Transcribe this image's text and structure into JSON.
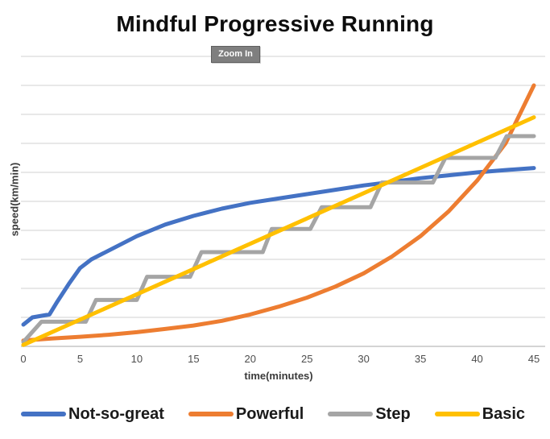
{
  "title": "Mindful Progressive Running",
  "tooltip": {
    "label": "Zoom In"
  },
  "chart_data": {
    "type": "line",
    "title": "Mindful Progressive Running",
    "xlabel": "time(minutes)",
    "ylabel": "speed(km/min)",
    "xlim": [
      0,
      45
    ],
    "ylim": [
      0,
      10
    ],
    "x_ticks": [
      0,
      5,
      10,
      15,
      20,
      25,
      30,
      35,
      40,
      45
    ],
    "y_grid_step": 1,
    "y_tick_labels_visible": false,
    "grid": "horizontal",
    "grid_color": "#d9d9d9",
    "axis_color": "#c6c6c6",
    "tick_label_color": "#4d4d4d",
    "legend_position": "bottom",
    "series": [
      {
        "name": "Not-so-great",
        "color": "#4472C4",
        "points": [
          [
            0,
            0.75
          ],
          [
            0.8,
            1.0
          ],
          [
            2.3,
            1.1
          ],
          [
            3,
            1.55
          ],
          [
            4,
            2.15
          ],
          [
            5,
            2.7
          ],
          [
            6,
            3.0
          ],
          [
            7.5,
            3.3
          ],
          [
            10,
            3.8
          ],
          [
            12.5,
            4.2
          ],
          [
            15,
            4.5
          ],
          [
            17.5,
            4.75
          ],
          [
            20,
            4.95
          ],
          [
            22.5,
            5.1
          ],
          [
            25,
            5.25
          ],
          [
            27.5,
            5.4
          ],
          [
            30,
            5.55
          ],
          [
            32.5,
            5.67
          ],
          [
            35,
            5.8
          ],
          [
            37.5,
            5.9
          ],
          [
            40,
            6.0
          ],
          [
            42.5,
            6.08
          ],
          [
            45,
            6.15
          ]
        ]
      },
      {
        "name": "Powerful",
        "color": "#ED7D31",
        "points": [
          [
            0,
            0.2
          ],
          [
            2.5,
            0.27
          ],
          [
            5,
            0.33
          ],
          [
            7.5,
            0.4
          ],
          [
            10,
            0.49
          ],
          [
            12.5,
            0.6
          ],
          [
            15,
            0.72
          ],
          [
            17.5,
            0.88
          ],
          [
            20,
            1.1
          ],
          [
            22.5,
            1.37
          ],
          [
            25,
            1.68
          ],
          [
            27.5,
            2.06
          ],
          [
            30,
            2.52
          ],
          [
            32.5,
            3.1
          ],
          [
            35,
            3.8
          ],
          [
            37.5,
            4.66
          ],
          [
            40,
            5.72
          ],
          [
            42.5,
            7.0
          ],
          [
            45,
            9.0
          ]
        ]
      },
      {
        "name": "Step",
        "color": "#A5A5A5",
        "points": [
          [
            0,
            0.15
          ],
          [
            1.6,
            0.85
          ],
          [
            5.5,
            0.85
          ],
          [
            6.4,
            1.6
          ],
          [
            10,
            1.6
          ],
          [
            10.9,
            2.4
          ],
          [
            14.7,
            2.4
          ],
          [
            15.7,
            3.25
          ],
          [
            21.1,
            3.25
          ],
          [
            21.9,
            4.05
          ],
          [
            25.3,
            4.05
          ],
          [
            26.3,
            4.8
          ],
          [
            30.6,
            4.8
          ],
          [
            31.6,
            5.65
          ],
          [
            36.1,
            5.65
          ],
          [
            37.2,
            6.5
          ],
          [
            41.6,
            6.5
          ],
          [
            42.6,
            7.25
          ],
          [
            45,
            7.25
          ]
        ]
      },
      {
        "name": "Basic",
        "color": "#FFC000",
        "points": [
          [
            0,
            0.05
          ],
          [
            45,
            7.9
          ]
        ]
      }
    ]
  }
}
